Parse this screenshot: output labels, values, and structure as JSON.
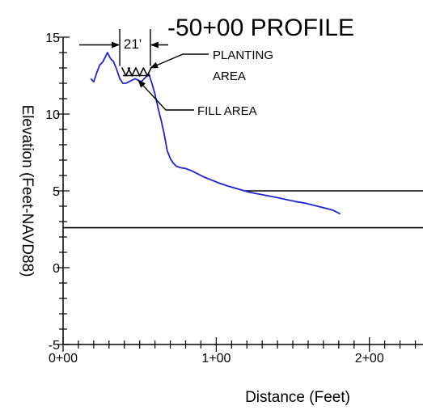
{
  "chart_data": {
    "type": "line",
    "title": "-50+00 PROFILE",
    "xlabel": "Distance (Feet)",
    "ylabel": "Elevation (Feet-NAVD88)",
    "xlim": [
      0,
      235
    ],
    "ylim": [
      -5,
      15
    ],
    "x_ticks": [
      {
        "value": 0,
        "label": "0+00"
      },
      {
        "value": 100,
        "label": "1+00"
      },
      {
        "value": 200,
        "label": "2+00"
      }
    ],
    "y_ticks": [
      {
        "value": -5,
        "label": "-5"
      },
      {
        "value": 0,
        "label": "0"
      },
      {
        "value": 5,
        "label": "5"
      },
      {
        "value": 10,
        "label": "10"
      },
      {
        "value": 15,
        "label": "15"
      }
    ],
    "grid": false,
    "series": [
      {
        "color": "#1f22d4",
        "points": [
          [
            18,
            12.3
          ],
          [
            20,
            12.1
          ],
          [
            22,
            12.7
          ],
          [
            24,
            13.2
          ],
          [
            26,
            13.4
          ],
          [
            28,
            13.8
          ],
          [
            29,
            14.0
          ],
          [
            31,
            13.6
          ],
          [
            33,
            13.4
          ],
          [
            35,
            12.9
          ],
          [
            37,
            12.3
          ],
          [
            39,
            12.0
          ],
          [
            41,
            12.0
          ],
          [
            43,
            12.1
          ],
          [
            45,
            12.2
          ],
          [
            47,
            12.3
          ],
          [
            49,
            12.2
          ],
          [
            51,
            12.1
          ],
          [
            53,
            12.3
          ],
          [
            55,
            12.5
          ],
          [
            56,
            12.6
          ],
          [
            58,
            12.0
          ],
          [
            60,
            11.3
          ],
          [
            62,
            10.4
          ],
          [
            64,
            9.6
          ],
          [
            66,
            8.7
          ],
          [
            68,
            7.6
          ],
          [
            70,
            7.1
          ],
          [
            72,
            6.8
          ],
          [
            74,
            6.6
          ],
          [
            77,
            6.5
          ],
          [
            80,
            6.45
          ],
          [
            84,
            6.3
          ],
          [
            88,
            6.1
          ],
          [
            92,
            5.9
          ],
          [
            97,
            5.7
          ],
          [
            102,
            5.5
          ],
          [
            108,
            5.3
          ],
          [
            115,
            5.1
          ],
          [
            122,
            4.9
          ],
          [
            130,
            4.75
          ],
          [
            138,
            4.6
          ],
          [
            145,
            4.45
          ],
          [
            152,
            4.3
          ],
          [
            158,
            4.2
          ],
          [
            164,
            4.05
          ],
          [
            170,
            3.9
          ],
          [
            176,
            3.75
          ],
          [
            181,
            3.5
          ]
        ]
      }
    ],
    "reference_lines": [
      {
        "y": 5.0,
        "x_start": 118,
        "x_end": 235,
        "color": "#000000"
      },
      {
        "y": 2.6,
        "x_start": 0,
        "x_end": 235,
        "color": "#000000"
      }
    ],
    "fill_area_outline": [
      [
        39,
        12.5
      ],
      [
        57,
        12.5
      ]
    ],
    "planting_area_marks": [
      41,
      45,
      50,
      55
    ],
    "dimension": {
      "label": "21'",
      "x_start": 37,
      "x_end": 57,
      "y": 14.5
    },
    "annotations": [
      {
        "text_lines": [
          "PLANTING",
          "AREA"
        ],
        "target": [
          56,
          13.0
        ]
      },
      {
        "text_lines": [
          "FILL AREA"
        ],
        "target": [
          47,
          12.3
        ]
      }
    ]
  }
}
